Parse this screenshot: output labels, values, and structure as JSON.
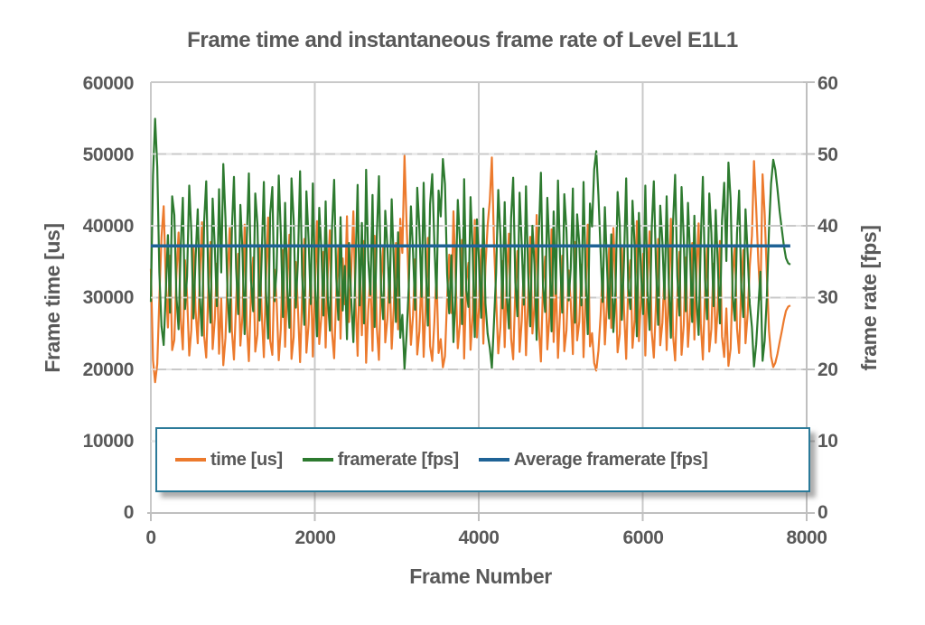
{
  "chart": {
    "title": "Frame time and instantaneous frame rate of Level E1L1",
    "x_axis": {
      "title": "Frame Number",
      "ticks": [
        "0",
        "2000",
        "4000",
        "6000",
        "8000"
      ]
    },
    "y_left": {
      "title": "Frame time [us]",
      "ticks": [
        "0",
        "10000",
        "20000",
        "30000",
        "40000",
        "50000",
        "60000"
      ]
    },
    "y_right": {
      "title": "frame rate [fps]",
      "ticks": [
        "0",
        "10",
        "20",
        "30",
        "40",
        "50",
        "60"
      ]
    },
    "legend": [
      {
        "label": "time [us]",
        "color": "#EC7A2D"
      },
      {
        "label": "framerate [fps]",
        "color": "#2D7A2F"
      },
      {
        "label": "Average framerate [fps]",
        "color": "#1F6396"
      }
    ],
    "colors": {
      "text": "#595959",
      "grid": "#C9C9C9",
      "grid_overlay": "#ECECEC",
      "axis": "#BFBFBF",
      "legend_border": "#2B7A99",
      "background": "#FFFFFF"
    }
  },
  "chart_data": {
    "type": "line",
    "title": "Frame time and instantaneous frame rate of Level E1L1",
    "xlabel": "Frame Number",
    "ylabel_left": "Frame time [us]",
    "ylabel_right": "frame rate [fps]",
    "xlim": [
      0,
      8000
    ],
    "ylim_left": [
      0,
      60000
    ],
    "ylim_right": [
      0,
      60
    ],
    "grid": true,
    "legend_position": "bottom-inside",
    "x_sampling": {
      "start": 0,
      "step": 26,
      "count": 301,
      "end": 7800
    },
    "series": [
      {
        "name": "time [us]",
        "axis": "left",
        "unit": "us",
        "color": "#EC7A2D",
        "derived": "values = 1000000 / framerate[fps] (reciprocal of series 2), range approx 18000-50000, mean approx 27000"
      },
      {
        "name": "framerate [fps]",
        "axis": "right",
        "unit": "fps",
        "color": "#2D7A2F",
        "x_start": 0,
        "x_step": 26,
        "values": [
          29.4,
          47.0,
          54.9,
          48.2,
          33.5,
          26.0,
          23.4,
          30.6,
          38.7,
          27.9,
          44.1,
          41.5,
          30.2,
          25.6,
          36.8,
          43.9,
          28.4,
          33.0,
          45.6,
          39.2,
          27.1,
          35.4,
          42.3,
          29.8,
          24.7,
          40.6,
          46.2,
          31.9,
          26.5,
          43.8,
          37.0,
          28.8,
          45.1,
          33.5,
          48.6,
          41.0,
          30.6,
          25.2,
          39.4,
          46.8,
          34.1,
          27.7,
          42.9,
          36.2,
          24.9,
          38.3,
          47.3,
          32.4,
          28.1,
          44.5,
          40.2,
          26.8,
          35.7,
          46.1,
          30.9,
          24.3,
          41.7,
          45.4,
          29.5,
          33.8,
          47.0,
          38.9,
          27.3,
          43.2,
          31.4,
          25.8,
          46.6,
          40.8,
          28.6,
          35.0,
          47.6,
          33.1,
          26.2,
          44.8,
          38.1,
          29.1,
          45.9,
          31.7,
          24.6,
          42.5,
          36.5,
          27.5,
          43.4,
          30.0,
          25.4,
          39.8,
          46.4,
          32.7,
          26.9,
          41.2,
          28.2,
          34.4,
          24.2,
          37.6,
          29.7,
          23.8,
          33.9,
          45.7,
          28.9,
          40.4,
          26.4,
          47.8,
          35.2,
          30.4,
          44.3,
          25.9,
          38.5,
          46.9,
          31.2,
          27.0,
          42.1,
          36.9,
          29.3,
          43.7,
          34.7,
          26.6,
          39.1,
          24.4,
          27.6,
          20.1,
          24.8,
          31.5,
          42.7,
          36.4,
          28.3,
          45.3,
          39.5,
          30.1,
          46.0,
          34.2,
          26.1,
          43.0,
          47.2,
          37.8,
          29.9,
          44.9,
          41.3,
          49.3,
          45.8,
          33.3,
          27.8,
          35.9,
          23.8,
          30.7,
          43.6,
          38.0,
          26.3,
          46.5,
          31.0,
          28.7,
          44.0,
          36.1,
          24.5,
          40.9,
          34.9,
          27.2,
          42.4,
          29.2,
          25.0,
          23.0,
          20.2,
          26.7,
          33.4,
          45.0,
          38.6,
          28.5,
          43.3,
          30.3,
          25.7,
          41.1,
          46.7,
          32.1,
          27.4,
          44.6,
          37.3,
          29.0,
          45.5,
          33.7,
          26.0,
          40.0,
          34.5,
          24.1,
          38.4,
          47.4,
          31.6,
          28.0,
          43.9,
          36.6,
          25.3,
          42.0,
          30.5,
          46.3,
          35.6,
          27.9,
          44.4,
          39.3,
          29.6,
          34.0,
          45.2,
          26.5,
          41.6,
          37.5,
          28.9,
          46.1,
          32.8,
          24.9,
          43.1,
          39.9,
          47.9,
          50.4,
          44.2,
          36.3,
          29.4,
          42.6,
          34.6,
          27.1,
          38.8,
          25.2,
          30.9,
          44.7,
          40.1,
          26.9,
          35.3,
          46.6,
          31.3,
          28.4,
          43.5,
          37.1,
          24.6,
          41.8,
          33.2,
          27.7,
          45.6,
          30.8,
          25.5,
          39.7,
          46.2,
          34.3,
          26.2,
          42.8,
          37.7,
          29.8,
          44.1,
          31.9,
          24.4,
          40.5,
          47.1,
          33.0,
          27.5,
          45.4,
          38.2,
          28.1,
          43.2,
          35.8,
          26.6,
          41.4,
          30.0,
          24.8,
          37.9,
          46.8,
          32.5,
          27.0,
          44.5,
          39.0,
          28.8,
          42.2,
          34.8,
          26.4,
          40.7,
          46.0,
          35.1,
          48.8,
          43.7,
          30.2,
          26.8,
          38.9,
          44.9,
          31.4,
          27.3,
          42.3,
          36.0,
          29.1,
          25.9,
          20.4,
          23.5,
          28.6,
          33.6,
          21.2,
          24.0,
          30.0,
          39.4,
          45.9,
          49.2,
          47.8,
          45.1,
          42.0,
          39.6,
          37.2,
          35.5,
          34.8,
          34.6
        ]
      },
      {
        "name": "Average framerate [fps]",
        "axis": "right",
        "unit": "fps",
        "color": "#1F6396",
        "value": 37.2
      }
    ]
  }
}
